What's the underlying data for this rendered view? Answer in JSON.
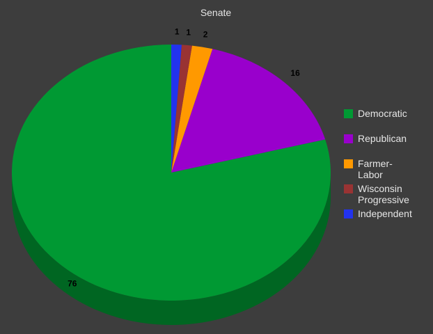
{
  "chart_data": {
    "type": "pie",
    "title": "Senate",
    "categories": [
      "Democratic",
      "Republican",
      "Farmer-Labor",
      "Wisconsin Progressive",
      "Independent"
    ],
    "values": [
      76,
      16,
      2,
      1,
      1
    ],
    "colors": [
      "#009933",
      "#9900cc",
      "#ff9900",
      "#993333",
      "#2233ee"
    ],
    "side_colors": [
      "#006622",
      "#660088",
      "#aa6600",
      "#662222",
      "#111199"
    ],
    "legend_lines": [
      [
        "Democratic"
      ],
      [
        "Republican"
      ],
      [
        "Farmer-",
        "Labor"
      ],
      [
        "Wisconsin",
        "Progressive"
      ],
      [
        "Independent"
      ]
    ],
    "legend_position": "right",
    "three_d": true
  }
}
